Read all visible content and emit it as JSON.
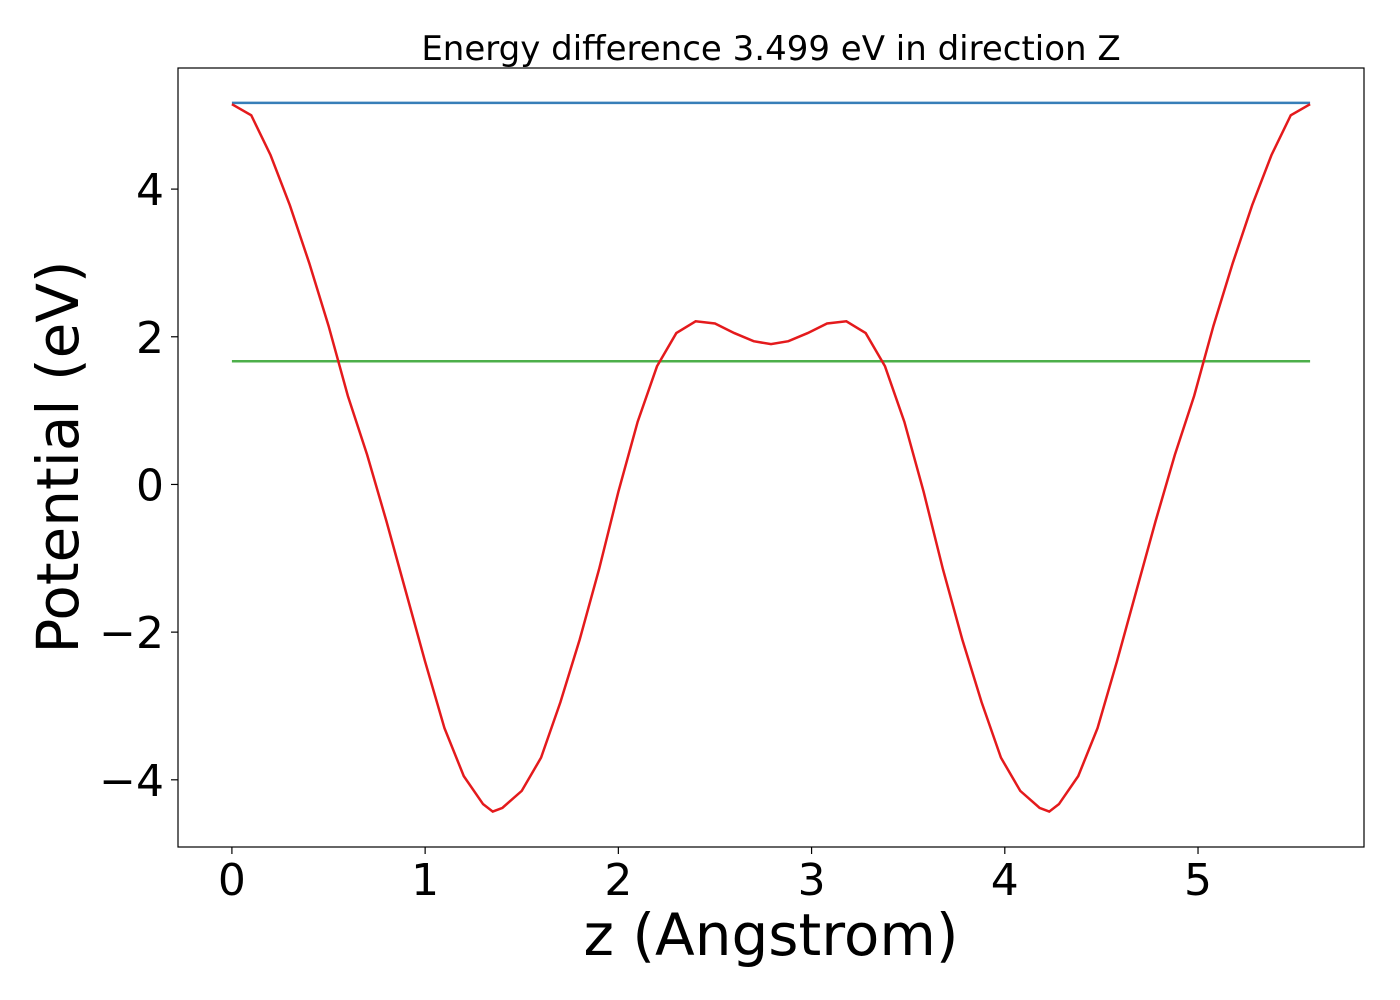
{
  "chart_data": {
    "type": "line",
    "title": "Energy difference 3.499 eV in direction Z",
    "x_label": "z (Angstrom)",
    "y_label": "Potential (eV)",
    "xlim": [
      -0.279,
      5.859
    ],
    "ylim": [
      -4.91,
      5.64
    ],
    "xticks": [
      0,
      1,
      2,
      3,
      4,
      5
    ],
    "yticks": [
      {
        "value": -4,
        "label": "−4"
      },
      {
        "value": -2,
        "label": "−2"
      },
      0,
      2,
      4
    ],
    "grid": false,
    "series": [
      {
        "color": "#e41a1c",
        "x": [
          0,
          0.1,
          0.2,
          0.3,
          0.4,
          0.5,
          0.6,
          0.7,
          0.8,
          0.9,
          1.0,
          1.1,
          1.2,
          1.3,
          1.35,
          1.4,
          1.5,
          1.6,
          1.7,
          1.8,
          1.9,
          2.0,
          2.1,
          2.2,
          2.3,
          2.4,
          2.5,
          2.6,
          2.7,
          2.79,
          2.88,
          2.98,
          3.08,
          3.18,
          3.28,
          3.38,
          3.48,
          3.58,
          3.68,
          3.78,
          3.88,
          3.98,
          4.08,
          4.18,
          4.23,
          4.28,
          4.38,
          4.48,
          4.58,
          4.68,
          4.78,
          4.88,
          4.98,
          5.08,
          5.18,
          5.28,
          5.38,
          5.48,
          5.58
        ],
        "values": [
          5.15,
          5.0,
          4.46,
          3.78,
          3.0,
          2.15,
          1.2,
          0.4,
          -0.5,
          -1.45,
          -2.4,
          -3.3,
          -3.95,
          -4.33,
          -4.43,
          -4.38,
          -4.15,
          -3.7,
          -2.95,
          -2.1,
          -1.15,
          -0.1,
          0.85,
          1.6,
          2.05,
          2.21,
          2.18,
          2.05,
          1.94,
          1.9,
          1.94,
          2.05,
          2.18,
          2.21,
          2.05,
          1.6,
          0.85,
          -0.1,
          -1.15,
          -2.1,
          -2.95,
          -3.7,
          -4.15,
          -4.38,
          -4.43,
          -4.33,
          -3.95,
          -3.3,
          -2.4,
          -1.45,
          -0.5,
          0.4,
          1.2,
          2.15,
          3.0,
          3.78,
          4.46,
          5.0,
          5.15
        ]
      },
      {
        "color": "#377eb8",
        "x": [
          0,
          5.58
        ],
        "values": [
          5.167,
          5.167
        ]
      },
      {
        "color": "#4daf4a",
        "x": [
          0,
          5.58
        ],
        "values": [
          1.668,
          1.668
        ]
      }
    ]
  }
}
